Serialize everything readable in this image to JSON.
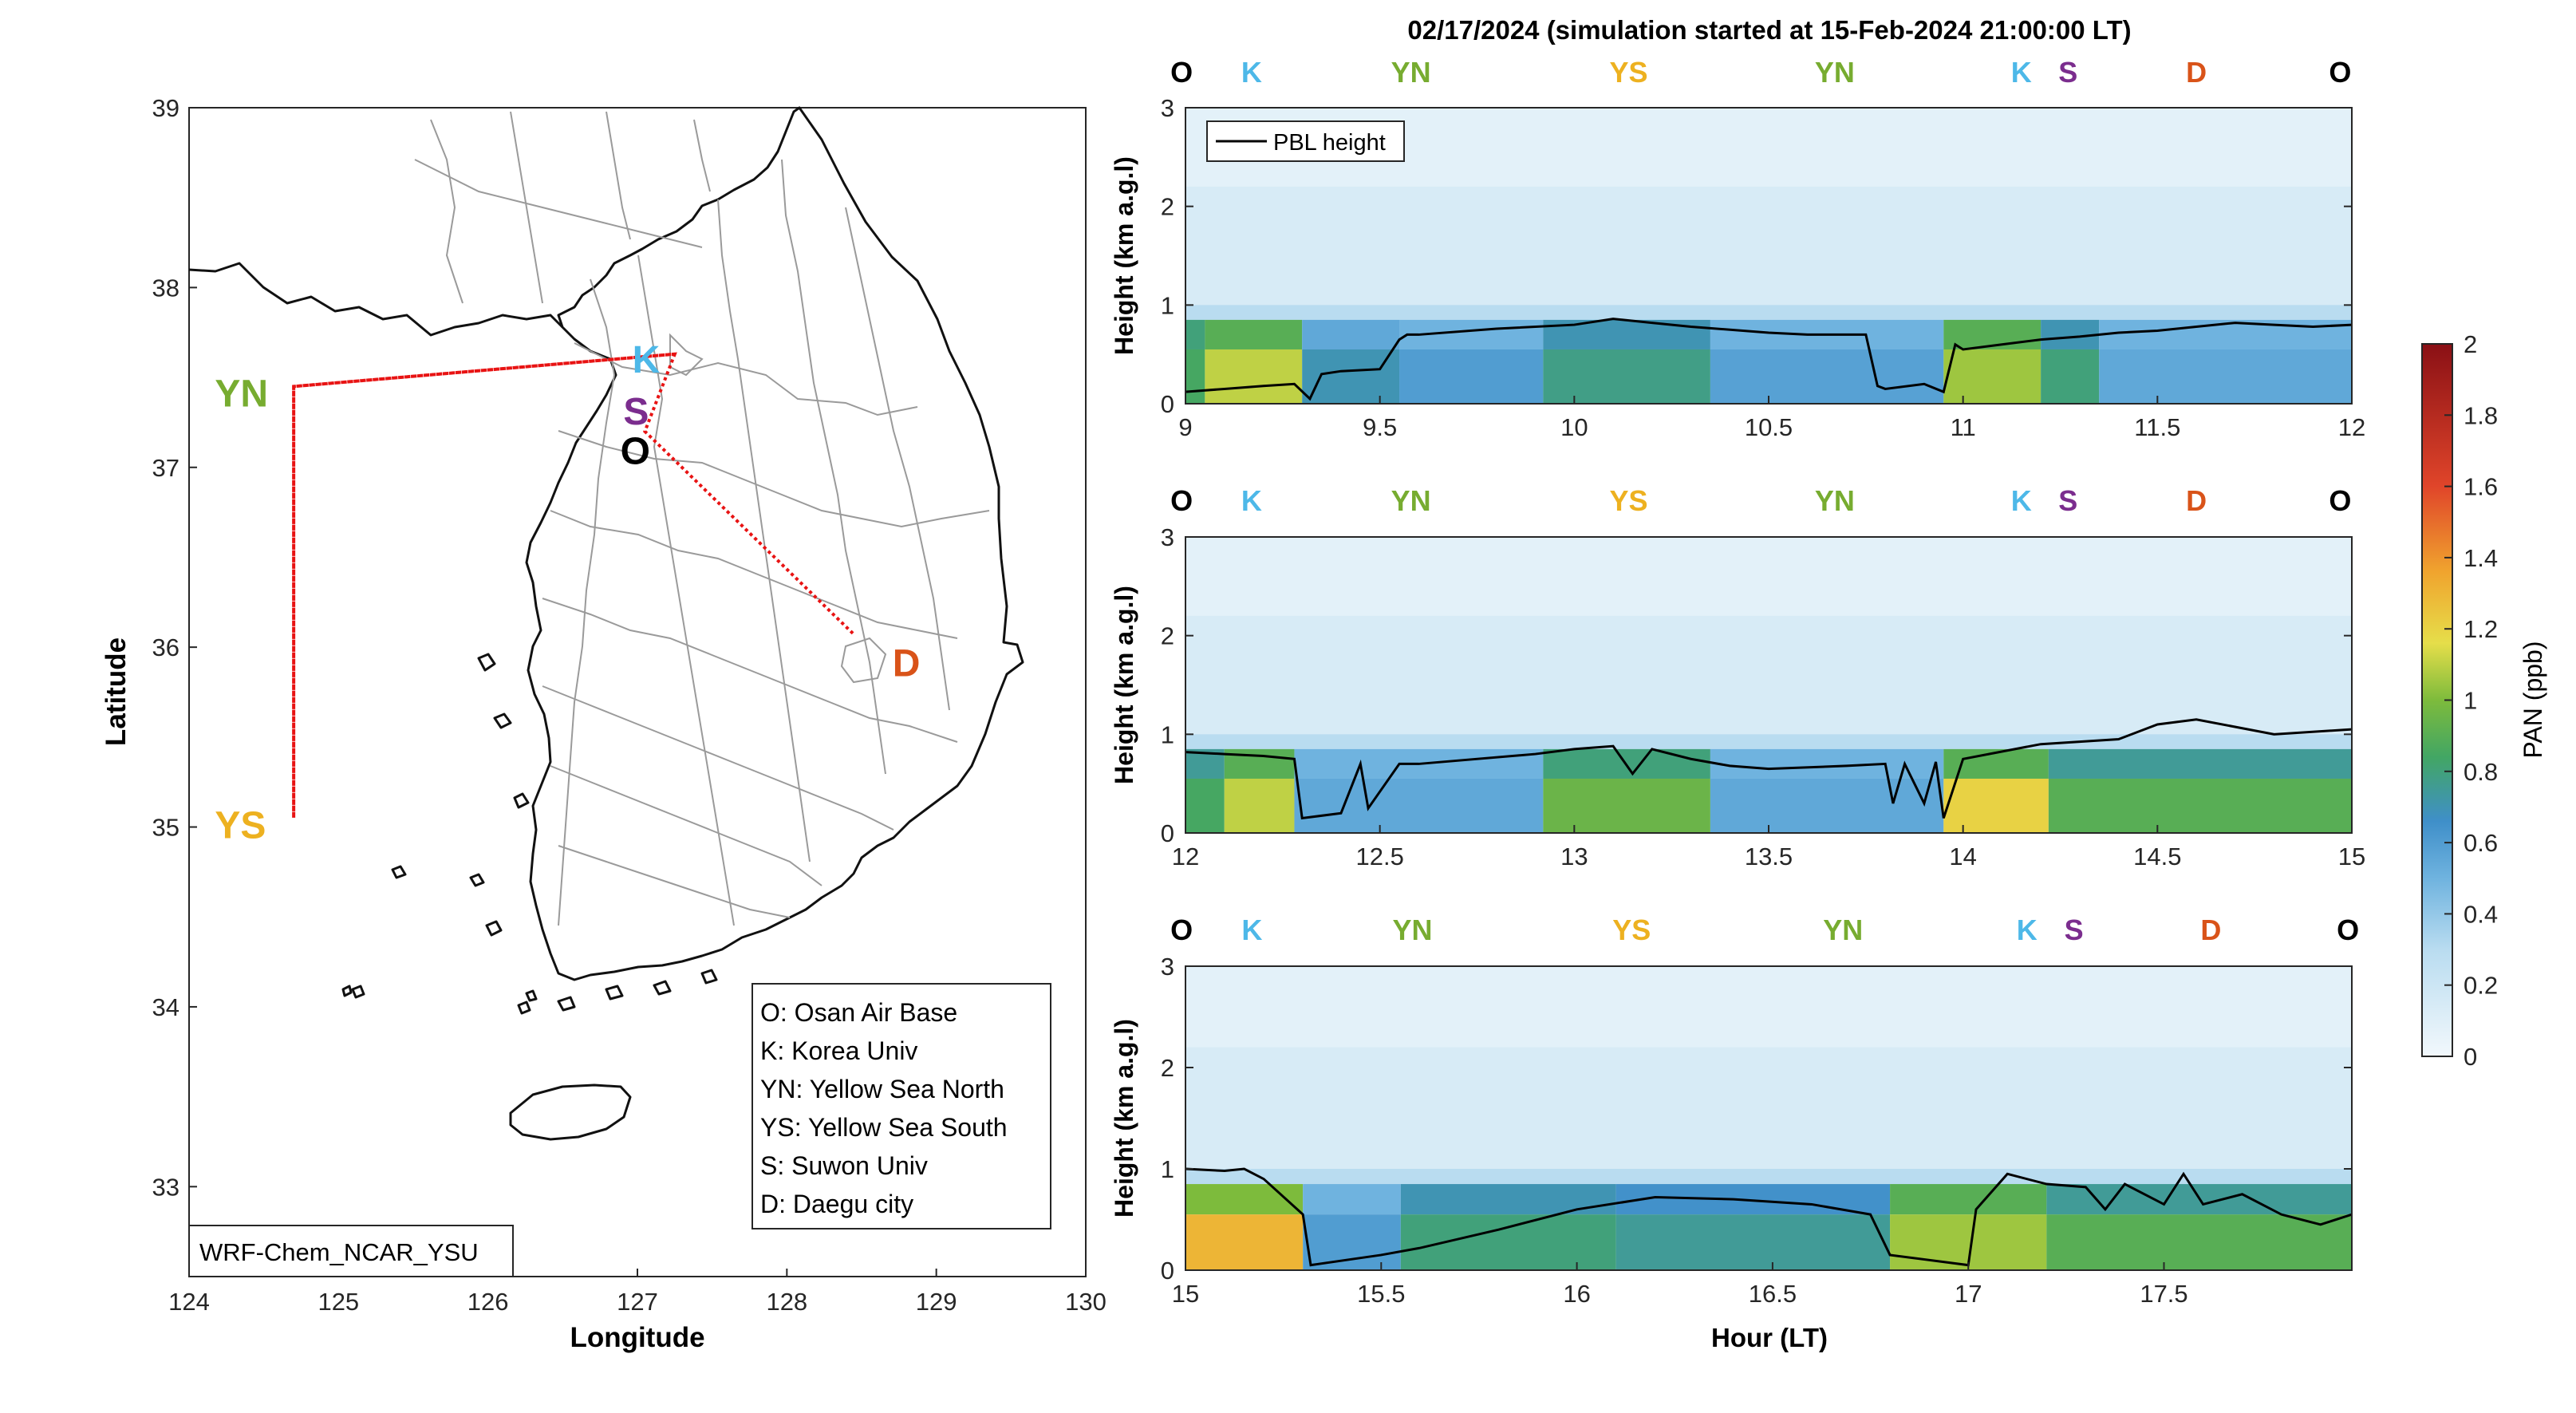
{
  "figure": {
    "title": "02/17/2024 (simulation started at 15-Feb-2024 21:00:00 LT)"
  },
  "map": {
    "xlabel": "Longitude",
    "ylabel": "Latitude",
    "xlim": [
      124,
      130
    ],
    "ylim": [
      32.5,
      39
    ],
    "xticks": [
      "124",
      "125",
      "126",
      "127",
      "128",
      "129",
      "130"
    ],
    "yticks": [
      "33",
      "34",
      "35",
      "36",
      "37",
      "38",
      "39"
    ],
    "model_label": "WRF-Chem_NCAR_YSU",
    "legend": [
      "O: Osan Air Base",
      "K: Korea Univ",
      "YN: Yellow Sea North",
      "YS: Yellow Sea South",
      "S: Suwon Univ",
      "D: Daegu city"
    ],
    "sites": [
      {
        "code": "O",
        "lon": 126.95,
        "lat": 37.08,
        "color": "#000000"
      },
      {
        "code": "K",
        "lon": 127.03,
        "lat": 37.59,
        "color": "#4db8e8"
      },
      {
        "code": "S",
        "lon": 126.97,
        "lat": 37.3,
        "color": "#7b2d8e"
      },
      {
        "code": "YN",
        "lon": 124.6,
        "lat": 37.4,
        "color": "#77ac30"
      },
      {
        "code": "YS",
        "lon": 124.6,
        "lat": 35.0,
        "color": "#edb120"
      },
      {
        "code": "D",
        "lon": 128.6,
        "lat": 35.9,
        "color": "#d95319"
      }
    ],
    "flight_track": [
      {
        "lon": 127.25,
        "lat": 37.63
      },
      {
        "lon": 124.7,
        "lat": 37.45
      },
      {
        "lon": 124.7,
        "lat": 35.05
      },
      {
        "lon": 124.7,
        "lat": 37.45
      },
      {
        "lon": 127.25,
        "lat": 37.63
      },
      {
        "lon": 127.05,
        "lat": 37.2
      },
      {
        "lon": 128.45,
        "lat": 36.07
      }
    ]
  },
  "colorbar": {
    "label": "PAN (ppb)",
    "ticks": [
      "0",
      "0.2",
      "0.4",
      "0.6",
      "0.8",
      "1",
      "1.2",
      "1.4",
      "1.6",
      "1.8",
      "2"
    ],
    "range": [
      0,
      2
    ]
  },
  "chart_data": [
    {
      "type": "heatmap",
      "ylabel": "Height (km a.g.l)",
      "xlim": [
        9,
        12
      ],
      "ylim": [
        0,
        3
      ],
      "xticks": [
        "9",
        "9.5",
        "10",
        "10.5",
        "11",
        "11.5",
        "12"
      ],
      "yticks": [
        "0",
        "1",
        "2",
        "3"
      ],
      "legend": "PBL height",
      "site_markers": [
        {
          "code": "O",
          "x": 8.99,
          "color": "#000000"
        },
        {
          "code": "K",
          "x": 9.17,
          "color": "#4db8e8"
        },
        {
          "code": "YN",
          "x": 9.58,
          "color": "#77ac30"
        },
        {
          "code": "YS",
          "x": 10.14,
          "color": "#edb120"
        },
        {
          "code": "YN",
          "x": 10.67,
          "color": "#77ac30"
        },
        {
          "code": "K",
          "x": 11.15,
          "color": "#4db8e8"
        },
        {
          "code": "S",
          "x": 11.27,
          "color": "#7b2d8e"
        },
        {
          "code": "D",
          "x": 11.6,
          "color": "#d95319"
        },
        {
          "code": "O",
          "x": 11.97,
          "color": "#000000"
        }
      ],
      "pbl_height": {
        "x": [
          9.0,
          9.1,
          9.2,
          9.28,
          9.32,
          9.35,
          9.4,
          9.5,
          9.55,
          9.57,
          9.6,
          9.8,
          10.0,
          10.1,
          10.2,
          10.3,
          10.5,
          10.6,
          10.75,
          10.78,
          10.8,
          10.9,
          10.95,
          10.98,
          11.0,
          11.1,
          11.2,
          11.3,
          11.4,
          11.5,
          11.6,
          11.7,
          11.8,
          11.9,
          12.0
        ],
        "y": [
          0.12,
          0.15,
          0.18,
          0.2,
          0.05,
          0.3,
          0.33,
          0.35,
          0.65,
          0.7,
          0.7,
          0.76,
          0.8,
          0.86,
          0.82,
          0.78,
          0.72,
          0.7,
          0.7,
          0.18,
          0.15,
          0.2,
          0.12,
          0.6,
          0.55,
          0.6,
          0.65,
          0.68,
          0.72,
          0.74,
          0.78,
          0.82,
          0.8,
          0.78,
          0.8
        ]
      },
      "column_means": [
        {
          "from": 9.0,
          "to": 9.05,
          "surface": 0.85,
          "top": 0.8
        },
        {
          "from": 9.05,
          "to": 9.3,
          "surface": 1.1,
          "top": 0.9
        },
        {
          "from": 9.3,
          "to": 9.55,
          "surface": 0.7,
          "top": 0.55
        },
        {
          "from": 9.55,
          "to": 9.92,
          "surface": 0.6,
          "top": 0.5
        },
        {
          "from": 9.92,
          "to": 10.35,
          "surface": 0.78,
          "top": 0.7
        },
        {
          "from": 10.35,
          "to": 10.95,
          "surface": 0.58,
          "top": 0.5
        },
        {
          "from": 10.95,
          "to": 11.2,
          "surface": 1.05,
          "top": 0.9
        },
        {
          "from": 11.2,
          "to": 11.35,
          "surface": 0.8,
          "top": 0.7
        },
        {
          "from": 11.35,
          "to": 12.0,
          "surface": 0.55,
          "top": 0.5
        }
      ]
    },
    {
      "type": "heatmap",
      "ylabel": "Height (km a.g.l)",
      "xlim": [
        12,
        15
      ],
      "ylim": [
        0,
        3
      ],
      "xticks": [
        "12",
        "12.5",
        "13",
        "13.5",
        "14",
        "14.5",
        "15"
      ],
      "yticks": [
        "0",
        "1",
        "2",
        "3"
      ],
      "site_markers": [
        {
          "code": "O",
          "x": 11.99,
          "color": "#000000"
        },
        {
          "code": "K",
          "x": 12.17,
          "color": "#4db8e8"
        },
        {
          "code": "YN",
          "x": 12.58,
          "color": "#77ac30"
        },
        {
          "code": "YS",
          "x": 13.14,
          "color": "#edb120"
        },
        {
          "code": "YN",
          "x": 13.67,
          "color": "#77ac30"
        },
        {
          "code": "K",
          "x": 14.15,
          "color": "#4db8e8"
        },
        {
          "code": "S",
          "x": 14.27,
          "color": "#7b2d8e"
        },
        {
          "code": "D",
          "x": 14.6,
          "color": "#d95319"
        },
        {
          "code": "O",
          "x": 14.97,
          "color": "#000000"
        }
      ],
      "pbl_height": {
        "x": [
          12.0,
          12.1,
          12.2,
          12.28,
          12.3,
          12.4,
          12.45,
          12.47,
          12.55,
          12.6,
          12.9,
          13.0,
          13.1,
          13.15,
          13.2,
          13.3,
          13.4,
          13.5,
          13.7,
          13.8,
          13.82,
          13.85,
          13.9,
          13.93,
          13.95,
          14.0,
          14.2,
          14.4,
          14.5,
          14.6,
          14.8,
          15.0
        ],
        "y": [
          0.82,
          0.8,
          0.78,
          0.75,
          0.15,
          0.2,
          0.7,
          0.25,
          0.7,
          0.7,
          0.8,
          0.85,
          0.88,
          0.6,
          0.85,
          0.75,
          0.68,
          0.65,
          0.68,
          0.7,
          0.3,
          0.7,
          0.3,
          0.72,
          0.15,
          0.75,
          0.9,
          0.95,
          1.1,
          1.15,
          1.0,
          1.05
        ]
      },
      "column_means": [
        {
          "from": 12.0,
          "to": 12.1,
          "surface": 0.85,
          "top": 0.75
        },
        {
          "from": 12.1,
          "to": 12.28,
          "surface": 1.1,
          "top": 0.9
        },
        {
          "from": 12.28,
          "to": 12.92,
          "surface": 0.55,
          "top": 0.5
        },
        {
          "from": 12.92,
          "to": 13.35,
          "surface": 0.95,
          "top": 0.8
        },
        {
          "from": 13.35,
          "to": 13.95,
          "surface": 0.55,
          "top": 0.5
        },
        {
          "from": 13.95,
          "to": 14.22,
          "surface": 1.2,
          "top": 0.9
        },
        {
          "from": 14.22,
          "to": 15.0,
          "surface": 0.9,
          "top": 0.75
        }
      ]
    },
    {
      "type": "heatmap",
      "xlabel": "Hour (LT)",
      "ylabel": "Height (km a.g.l)",
      "xlim": [
        15,
        17.98
      ],
      "ylim": [
        0,
        3
      ],
      "xticks": [
        "15",
        "15.5",
        "16",
        "16.5",
        "17",
        "17.5"
      ],
      "yticks": [
        "0",
        "1",
        "2",
        "3"
      ],
      "site_markers": [
        {
          "code": "O",
          "x": 14.99,
          "color": "#000000"
        },
        {
          "code": "K",
          "x": 15.17,
          "color": "#4db8e8"
        },
        {
          "code": "YN",
          "x": 15.58,
          "color": "#77ac30"
        },
        {
          "code": "YS",
          "x": 16.14,
          "color": "#edb120"
        },
        {
          "code": "YN",
          "x": 16.68,
          "color": "#77ac30"
        },
        {
          "code": "K",
          "x": 17.15,
          "color": "#4db8e8"
        },
        {
          "code": "S",
          "x": 17.27,
          "color": "#7b2d8e"
        },
        {
          "code": "D",
          "x": 17.62,
          "color": "#d95319"
        },
        {
          "code": "O",
          "x": 17.97,
          "color": "#000000"
        }
      ],
      "pbl_height": {
        "x": [
          15.0,
          15.1,
          15.15,
          15.2,
          15.3,
          15.32,
          15.5,
          15.6,
          15.8,
          16.0,
          16.2,
          16.4,
          16.6,
          16.75,
          16.8,
          17.0,
          17.02,
          17.1,
          17.2,
          17.3,
          17.35,
          17.4,
          17.5,
          17.55,
          17.6,
          17.7,
          17.8,
          17.9,
          17.98
        ],
        "y": [
          1.0,
          0.98,
          1.0,
          0.9,
          0.55,
          0.05,
          0.15,
          0.22,
          0.4,
          0.6,
          0.72,
          0.7,
          0.65,
          0.55,
          0.15,
          0.05,
          0.6,
          0.95,
          0.85,
          0.82,
          0.6,
          0.85,
          0.65,
          0.95,
          0.65,
          0.75,
          0.55,
          0.45,
          0.55
        ]
      },
      "column_means": [
        {
          "from": 15.0,
          "to": 15.3,
          "surface": 1.3,
          "top": 1.0
        },
        {
          "from": 15.3,
          "to": 15.55,
          "surface": 0.6,
          "top": 0.5
        },
        {
          "from": 15.55,
          "to": 16.1,
          "surface": 0.8,
          "top": 0.7
        },
        {
          "from": 16.1,
          "to": 16.8,
          "surface": 0.75,
          "top": 0.65
        },
        {
          "from": 16.8,
          "to": 17.2,
          "surface": 1.05,
          "top": 0.9
        },
        {
          "from": 17.2,
          "to": 17.98,
          "surface": 0.9,
          "top": 0.75
        }
      ]
    }
  ]
}
